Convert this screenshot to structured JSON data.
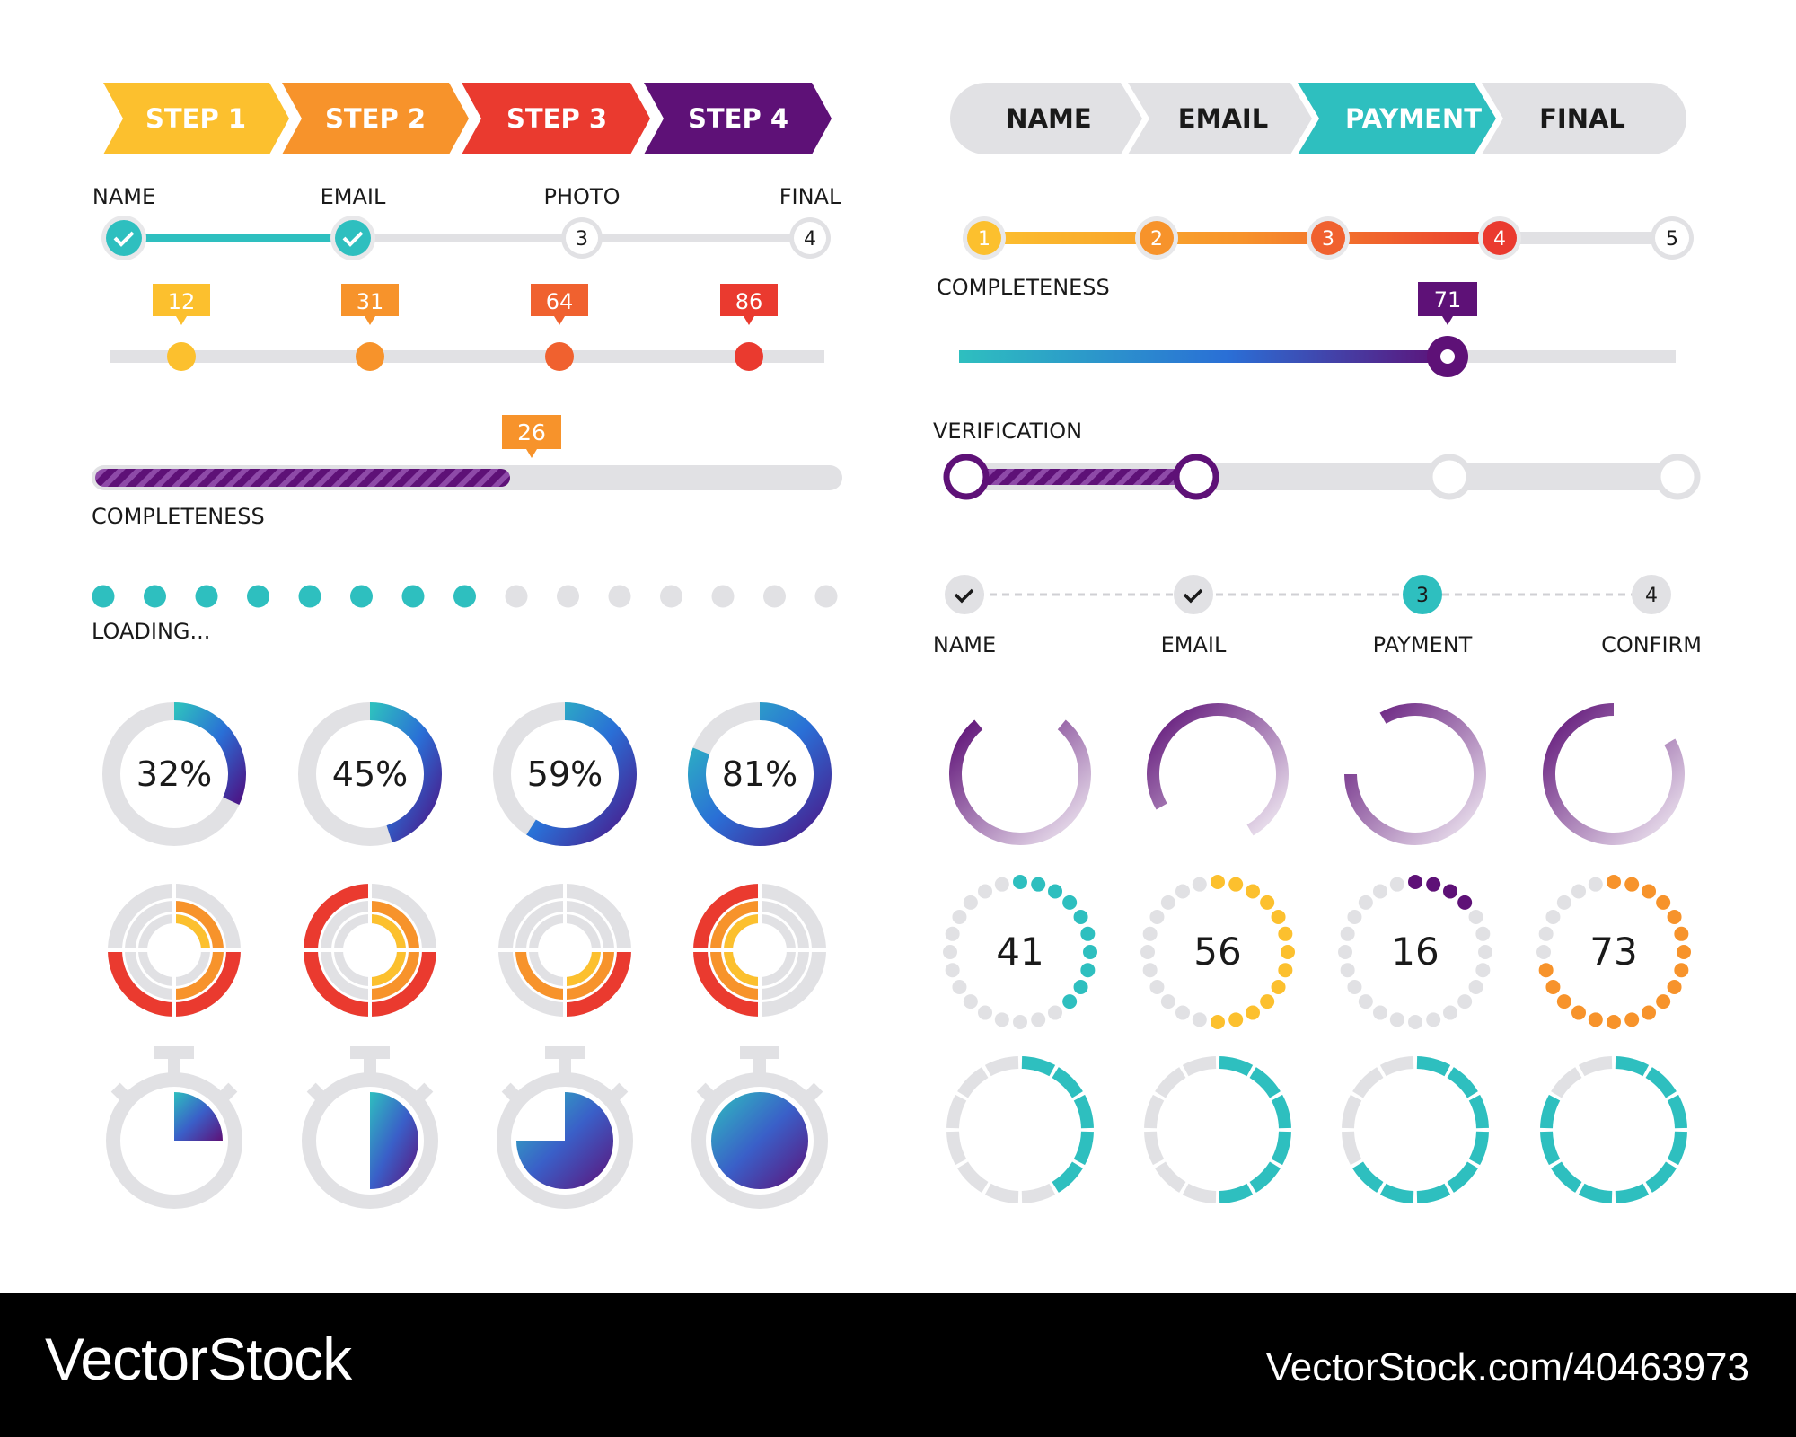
{
  "colors": {
    "yellow": "#fcc02e",
    "orange": "#f7932b",
    "red": "#ea3a2f",
    "purple": "#5e1177",
    "teal": "#2ebfbf",
    "track": "#e1e1e4",
    "text": "#1a1a1a"
  },
  "arrow_steps": [
    "STEP 1",
    "STEP 2",
    "STEP 3",
    "STEP 4"
  ],
  "pill_steps": [
    "NAME",
    "EMAIL",
    "PAYMENT",
    "FINAL"
  ],
  "pill_active": 2,
  "stepper_left": {
    "labels": [
      "NAME",
      "EMAIL",
      "PHOTO",
      "FINAL"
    ],
    "numbers": [
      "",
      "",
      "3",
      "4"
    ],
    "completed": 2
  },
  "value_markers": [
    12,
    31,
    64,
    86
  ],
  "completeness_bar": {
    "label": "COMPLETENESS",
    "value": 26
  },
  "loading": {
    "label": "LOADING...",
    "filled": 8,
    "total": 15
  },
  "numbered_stepper": {
    "numbers": [
      "1",
      "2",
      "3",
      "4",
      "5"
    ],
    "completed": 4
  },
  "completeness_slider": {
    "label": "COMPLETENESS",
    "value": 71
  },
  "verification": {
    "label": "VERIFICATION",
    "completed": 2,
    "total": 4
  },
  "checkout_steps": {
    "labels": [
      "NAME",
      "EMAIL",
      "PAYMENT",
      "CONFIRM"
    ],
    "numbers": [
      "",
      "",
      "3",
      "4"
    ],
    "current": 2
  },
  "percent_rings": [
    "32%",
    "45%",
    "59%",
    "81%"
  ],
  "percent_values": [
    32,
    45,
    59,
    81
  ],
  "dot_rings": [
    "41",
    "56",
    "16",
    "73"
  ],
  "dot_ring_colors": [
    "teal",
    "yellow",
    "purple",
    "orange"
  ],
  "timer_fractions": [
    0.25,
    0.5,
    0.75,
    1.0
  ],
  "segment_rings_filled": [
    5,
    6,
    8,
    10
  ],
  "brand": {
    "name": "VectorStock",
    "url": "VectorStock.com/40463973"
  }
}
